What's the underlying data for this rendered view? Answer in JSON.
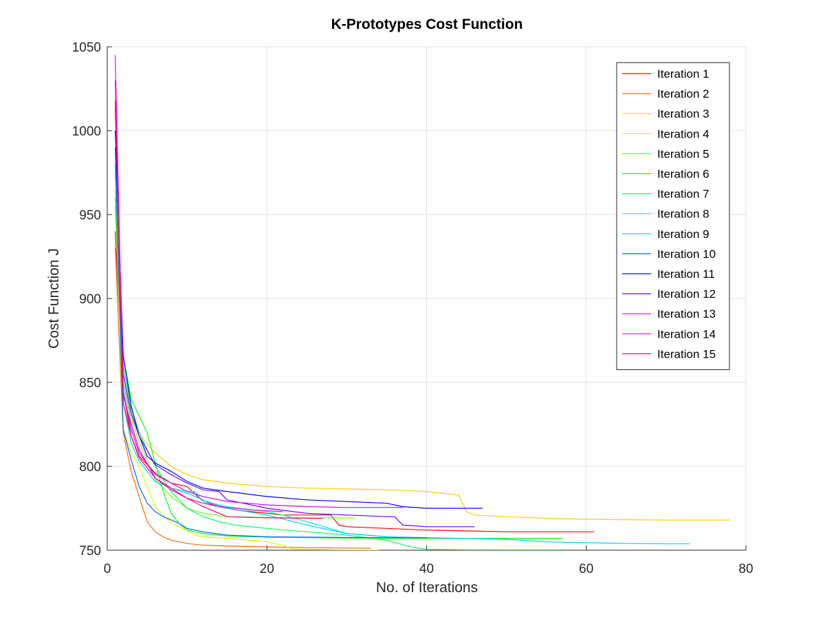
{
  "chart_data": {
    "type": "line",
    "title": "K-Prototypes Cost Function",
    "xlabel": "No. of Iterations",
    "ylabel": "Cost Function J",
    "xlim": [
      0,
      80
    ],
    "ylim": [
      750,
      1050
    ],
    "xticks": [
      0,
      20,
      40,
      60,
      80
    ],
    "yticks": [
      750,
      800,
      850,
      900,
      950,
      1000,
      1050
    ],
    "grid": true,
    "legend_position": "top-right",
    "series": [
      {
        "name": "Iteration 1",
        "color": "#ff0000",
        "x": [
          1,
          2,
          3,
          4,
          6,
          8,
          10,
          12,
          14,
          16,
          18,
          20,
          22,
          24,
          26,
          28,
          29,
          30,
          35,
          40,
          45,
          50,
          55,
          61
        ],
        "y": [
          940,
          845,
          818,
          806,
          796,
          790,
          788,
          779,
          776,
          774,
          773,
          772,
          771,
          771,
          771,
          771,
          765,
          764,
          763,
          762,
          761.5,
          761,
          761,
          761
        ]
      },
      {
        "name": "Iteration 2",
        "color": "#ff6600",
        "x": [
          1,
          2,
          3,
          4,
          5,
          6,
          7,
          8,
          9,
          10,
          12,
          15,
          20,
          25,
          30,
          33
        ],
        "y": [
          930,
          820,
          797,
          782,
          767,
          761,
          758,
          756,
          755,
          754,
          753,
          752.5,
          752,
          751.5,
          751.3,
          751.2
        ]
      },
      {
        "name": "Iteration 3",
        "color": "#ffcc00",
        "x": [
          1,
          2,
          3,
          4,
          5,
          6,
          8,
          10,
          12,
          15,
          20,
          25,
          30,
          35,
          40,
          44,
          45,
          46,
          50,
          55,
          60,
          65,
          70,
          78
        ],
        "y": [
          1010,
          855,
          830,
          820,
          813,
          808,
          800,
          795,
          792,
          790,
          788,
          787,
          786.5,
          786,
          785,
          783,
          773,
          771,
          770,
          769,
          768.5,
          768.2,
          768,
          768
        ]
      },
      {
        "name": "Iteration 4",
        "color": "#ccff00",
        "x": [
          1,
          2,
          3,
          4,
          6,
          8,
          10,
          11,
          12,
          15,
          20,
          22,
          23,
          25,
          30,
          34
        ],
        "y": [
          965,
          822,
          808,
          800,
          776,
          766,
          762,
          759,
          758,
          757,
          755,
          753,
          751,
          750.5,
          750.2,
          750
        ]
      },
      {
        "name": "Iteration 5",
        "color": "#66ff00",
        "x": [
          1,
          2,
          3,
          4,
          5,
          6,
          8,
          10,
          12,
          15,
          20,
          25,
          31
        ],
        "y": [
          955,
          850,
          830,
          814,
          804,
          792,
          782,
          775,
          772,
          770,
          769.5,
          769.3,
          769.2
        ]
      },
      {
        "name": "Iteration 6",
        "color": "#00ff00",
        "x": [
          1,
          2,
          3,
          4,
          5,
          6,
          7,
          8,
          9,
          10,
          12,
          15,
          20,
          25,
          30,
          35,
          40,
          45,
          50,
          57
        ],
        "y": [
          960,
          866,
          840,
          830,
          820,
          802,
          785,
          772,
          766,
          762,
          760,
          758.5,
          757.8,
          757.5,
          757.2,
          757,
          757,
          757,
          757,
          757
        ]
      },
      {
        "name": "Iteration 7",
        "color": "#00ff66",
        "x": [
          1,
          2,
          3,
          4,
          6,
          8,
          10,
          12,
          14,
          16,
          18,
          20,
          25,
          30,
          35,
          38,
          40,
          45,
          50,
          57
        ],
        "y": [
          975,
          860,
          835,
          820,
          800,
          785,
          775,
          770,
          767,
          765,
          764,
          763,
          761,
          759,
          756,
          752,
          750.5,
          750.3,
          750.2,
          750.2
        ]
      },
      {
        "name": "Iteration 8",
        "color": "#00ffcc",
        "x": [
          1,
          2,
          3,
          4,
          6,
          8,
          10,
          11,
          12,
          15,
          20,
          22,
          25,
          30,
          35,
          38
        ],
        "y": [
          977,
          850,
          826,
          810,
          793,
          787,
          785,
          785,
          779,
          776,
          773,
          771,
          767,
          760,
          758,
          757
        ]
      },
      {
        "name": "Iteration 9",
        "color": "#00ccff",
        "x": [
          1,
          2,
          3,
          4,
          6,
          8,
          10,
          12,
          15,
          20,
          25,
          30,
          35,
          40,
          45,
          50,
          55,
          60,
          65,
          70,
          73
        ],
        "y": [
          980,
          838,
          814,
          803,
          791,
          787,
          784,
          780,
          775,
          771,
          765,
          760,
          758,
          757.5,
          757,
          756.5,
          755,
          754.5,
          754,
          753.8,
          753.8
        ]
      },
      {
        "name": "Iteration 10",
        "color": "#0066ff",
        "x": [
          1,
          2,
          3,
          4,
          5,
          6,
          7,
          8,
          9,
          10,
          12,
          15,
          20,
          25,
          30,
          35,
          40
        ],
        "y": [
          990,
          822,
          804,
          788,
          778,
          773,
          770,
          768,
          766,
          763,
          761,
          759,
          758,
          757.8,
          757.6,
          757.5,
          757.5
        ]
      },
      {
        "name": "Iteration 11",
        "color": "#0000ff",
        "x": [
          1,
          2,
          3,
          4,
          5,
          6,
          8,
          10,
          12,
          15,
          20,
          25,
          30,
          35,
          37,
          40,
          45,
          47
        ],
        "y": [
          1000,
          866,
          836,
          818,
          806,
          802,
          797,
          791,
          787,
          785,
          782,
          780,
          779,
          778,
          776,
          775,
          775,
          775
        ]
      },
      {
        "name": "Iteration 12",
        "color": "#6600ff",
        "x": [
          1,
          2,
          3,
          4,
          6,
          8,
          10,
          12,
          14,
          15,
          16,
          20,
          25,
          30,
          35,
          36,
          37,
          40,
          46
        ],
        "y": [
          1015,
          855,
          832,
          818,
          801,
          795,
          790,
          786,
          785,
          780,
          779,
          775,
          772,
          771,
          770,
          770,
          765,
          764,
          764
        ]
      },
      {
        "name": "Iteration 13",
        "color": "#cc00ff",
        "x": [
          1,
          2,
          3,
          4,
          6,
          8,
          10,
          12,
          15,
          20,
          25,
          30,
          35,
          37
        ],
        "y": [
          1030,
          845,
          822,
          808,
          795,
          790,
          785,
          782,
          779,
          777,
          776,
          775.5,
          775.5,
          775.5
        ]
      },
      {
        "name": "Iteration 14",
        "color": "#ff00cc",
        "x": [
          1,
          2,
          3,
          4,
          6,
          8,
          10,
          12,
          14,
          16,
          18,
          22
        ],
        "y": [
          1045,
          842,
          825,
          810,
          793,
          786,
          781,
          778,
          776,
          775,
          774,
          773
        ]
      },
      {
        "name": "Iteration 15",
        "color": "#ff0066",
        "x": [
          1,
          2,
          3,
          4,
          6,
          8,
          10,
          12,
          14,
          15,
          18,
          22,
          27
        ],
        "y": [
          1018,
          838,
          818,
          805,
          793,
          787,
          781,
          776,
          772,
          770,
          769.5,
          769.2,
          769
        ]
      }
    ]
  }
}
